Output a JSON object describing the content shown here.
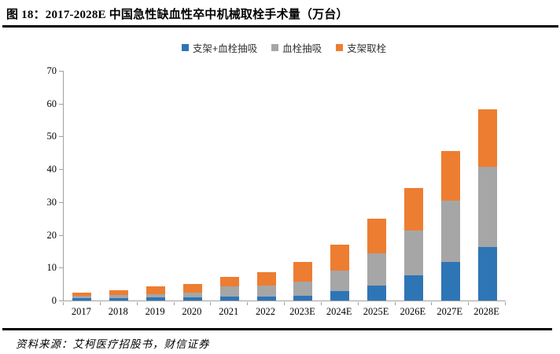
{
  "figure": {
    "title": "图 18：2017-2028E 中国急性缺血性卒中机械取栓手术量（万台）",
    "source": "资料来源：艾柯医疗招股书，财信证券"
  },
  "colors": {
    "series_stent_plus_aspiration": "#2E75B6",
    "series_aspiration": "#A6A6A6",
    "series_stent_retriever": "#ED7D31",
    "axis": "#A0A0A0",
    "rule": "#000000"
  },
  "chart_data": {
    "type": "bar",
    "stacked": true,
    "title": "2017-2028E 中国急性缺血性卒中机械取栓手术量（万台）",
    "categories": [
      "2017",
      "2018",
      "2019",
      "2020",
      "2021",
      "2022",
      "2023E",
      "2024E",
      "2025E",
      "2026E",
      "2027E",
      "2028E"
    ],
    "series": [
      {
        "name": "支架+血栓抽吸",
        "color": "#2E75B6",
        "values": [
          0.7,
          0.8,
          0.9,
          0.9,
          1.1,
          1.1,
          1.5,
          2.9,
          4.6,
          7.7,
          11.7,
          16.2
        ]
      },
      {
        "name": "血栓抽吸",
        "color": "#A6A6A6",
        "values": [
          0.7,
          0.9,
          1.1,
          1.4,
          3.2,
          3.5,
          4.2,
          6.1,
          9.9,
          13.7,
          18.8,
          24.6
        ]
      },
      {
        "name": "支架取栓",
        "color": "#ED7D31",
        "values": [
          1.1,
          1.5,
          2.4,
          2.7,
          3.0,
          4.0,
          6.0,
          8.0,
          10.4,
          12.9,
          15.1,
          17.5
        ]
      }
    ],
    "totals": [
      2.5,
      3.2,
      4.4,
      5.0,
      7.3,
      8.6,
      11.7,
      17.0,
      24.9,
      34.3,
      45.6,
      58.3
    ],
    "xlabel": "",
    "ylabel": "",
    "ylim": [
      0,
      70
    ],
    "yticks": [
      0,
      10,
      20,
      30,
      40,
      50,
      60,
      70
    ],
    "grid": false,
    "legend_position": "top-center"
  }
}
